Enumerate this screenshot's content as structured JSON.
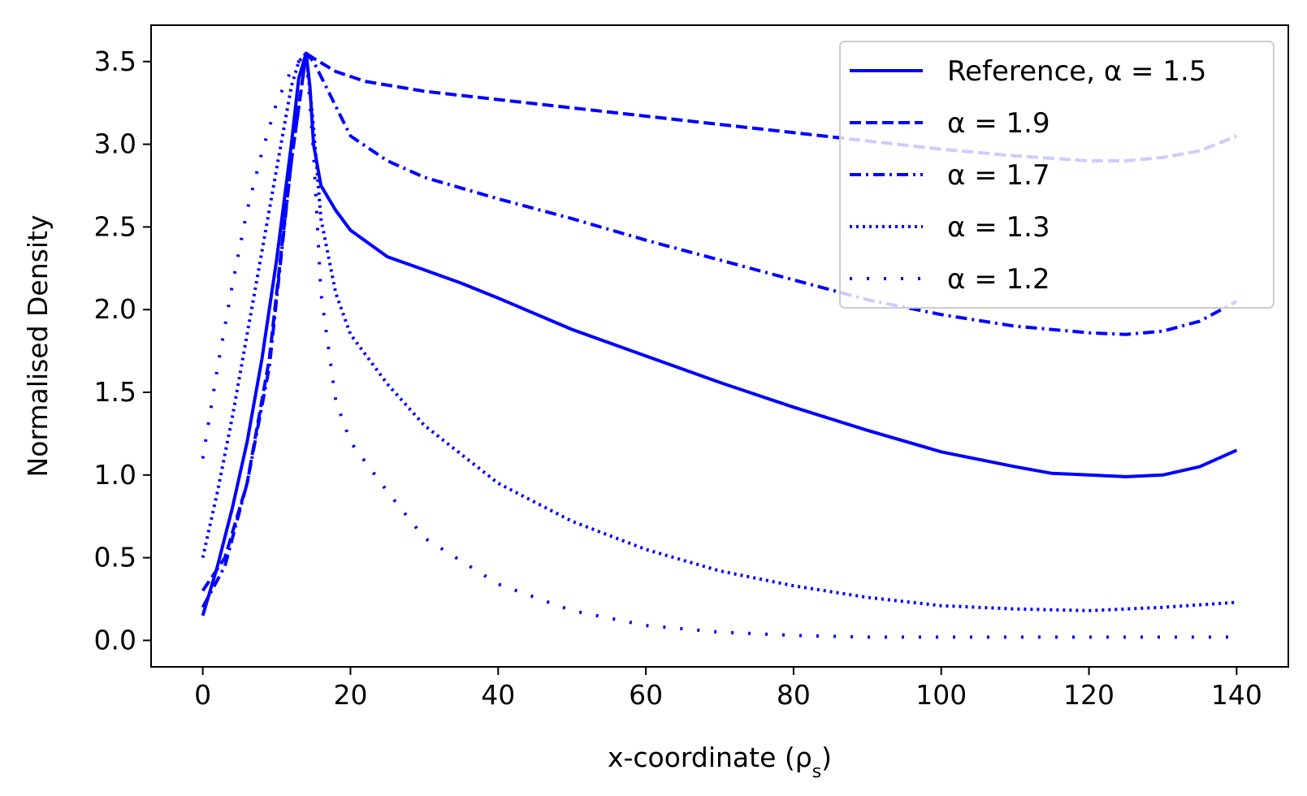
{
  "chart_data": {
    "type": "line",
    "xlabel": "x-coordinate (ρs)",
    "ylabel": "Normalised Density",
    "xlim": [
      -7,
      147
    ],
    "ylim": [
      -0.16,
      3.72
    ],
    "xticks": [
      0,
      20,
      40,
      60,
      80,
      100,
      120,
      140
    ],
    "xtick_labels": [
      "0",
      "20",
      "40",
      "60",
      "80",
      "100",
      "120",
      "140"
    ],
    "yticks": [
      0.0,
      0.5,
      1.0,
      1.5,
      2.0,
      2.5,
      3.0,
      3.5
    ],
    "ytick_labels": [
      "0.0",
      "0.5",
      "1.0",
      "1.5",
      "2.0",
      "2.5",
      "3.0",
      "3.5"
    ],
    "grid": false,
    "legend_position": "top-right",
    "color": "#0000ff",
    "series": [
      {
        "name": "Reference, α = 1.5",
        "style": "solid",
        "x": [
          0,
          2,
          4,
          6,
          8,
          10,
          12,
          13,
          14,
          14.5,
          15,
          16,
          18,
          20,
          25,
          30,
          35,
          40,
          50,
          60,
          70,
          80,
          90,
          100,
          110,
          115,
          120,
          125,
          130,
          135,
          140
        ],
        "y": [
          0.15,
          0.45,
          0.8,
          1.2,
          1.7,
          2.3,
          3.0,
          3.4,
          3.55,
          3.35,
          3.0,
          2.75,
          2.6,
          2.48,
          2.32,
          2.24,
          2.16,
          2.07,
          1.88,
          1.72,
          1.56,
          1.41,
          1.27,
          1.14,
          1.05,
          1.01,
          1.0,
          0.99,
          1.0,
          1.05,
          1.15
        ]
      },
      {
        "name": "α = 1.9",
        "style": "dashed",
        "x": [
          0,
          3,
          6,
          9,
          12,
          14,
          15,
          18,
          22,
          30,
          40,
          50,
          60,
          70,
          80,
          90,
          100,
          110,
          120,
          125,
          130,
          135,
          140
        ],
        "y": [
          0.3,
          0.5,
          0.95,
          1.7,
          2.9,
          3.55,
          3.52,
          3.44,
          3.38,
          3.32,
          3.27,
          3.22,
          3.17,
          3.12,
          3.07,
          3.02,
          2.97,
          2.93,
          2.9,
          2.9,
          2.92,
          2.96,
          3.05
        ]
      },
      {
        "name": "α = 1.7",
        "style": "dashdot",
        "x": [
          0,
          3,
          6,
          9,
          12,
          14,
          15,
          17,
          20,
          25,
          30,
          40,
          50,
          60,
          70,
          80,
          90,
          100,
          110,
          120,
          125,
          130,
          135,
          140
        ],
        "y": [
          0.2,
          0.45,
          0.95,
          1.65,
          2.9,
          3.55,
          3.5,
          3.32,
          3.05,
          2.9,
          2.8,
          2.67,
          2.55,
          2.42,
          2.3,
          2.18,
          2.06,
          1.97,
          1.9,
          1.86,
          1.85,
          1.87,
          1.93,
          2.05
        ]
      },
      {
        "name": "α = 1.3",
        "style": "dotted",
        "x": [
          0,
          2,
          4,
          6,
          8,
          10,
          12,
          13,
          14,
          15,
          16,
          18,
          20,
          25,
          30,
          40,
          50,
          60,
          70,
          80,
          90,
          100,
          110,
          120,
          130,
          140
        ],
        "y": [
          0.5,
          0.9,
          1.35,
          1.85,
          2.35,
          2.85,
          3.35,
          3.5,
          3.55,
          3.1,
          2.55,
          2.1,
          1.85,
          1.55,
          1.3,
          0.95,
          0.72,
          0.55,
          0.42,
          0.33,
          0.26,
          0.21,
          0.19,
          0.18,
          0.2,
          0.23
        ]
      },
      {
        "name": "α = 1.2",
        "style": "loosely-dotted",
        "x": [
          0,
          2,
          4,
          6,
          8,
          10,
          12,
          14,
          15,
          16,
          18,
          20,
          25,
          30,
          40,
          50,
          60,
          70,
          80,
          90,
          100,
          110,
          120,
          130,
          140
        ],
        "y": [
          1.1,
          1.65,
          2.15,
          2.6,
          2.95,
          3.25,
          3.45,
          3.55,
          2.95,
          2.1,
          1.45,
          1.2,
          0.9,
          0.62,
          0.34,
          0.18,
          0.09,
          0.05,
          0.03,
          0.02,
          0.02,
          0.02,
          0.02,
          0.02,
          0.02
        ]
      }
    ]
  }
}
